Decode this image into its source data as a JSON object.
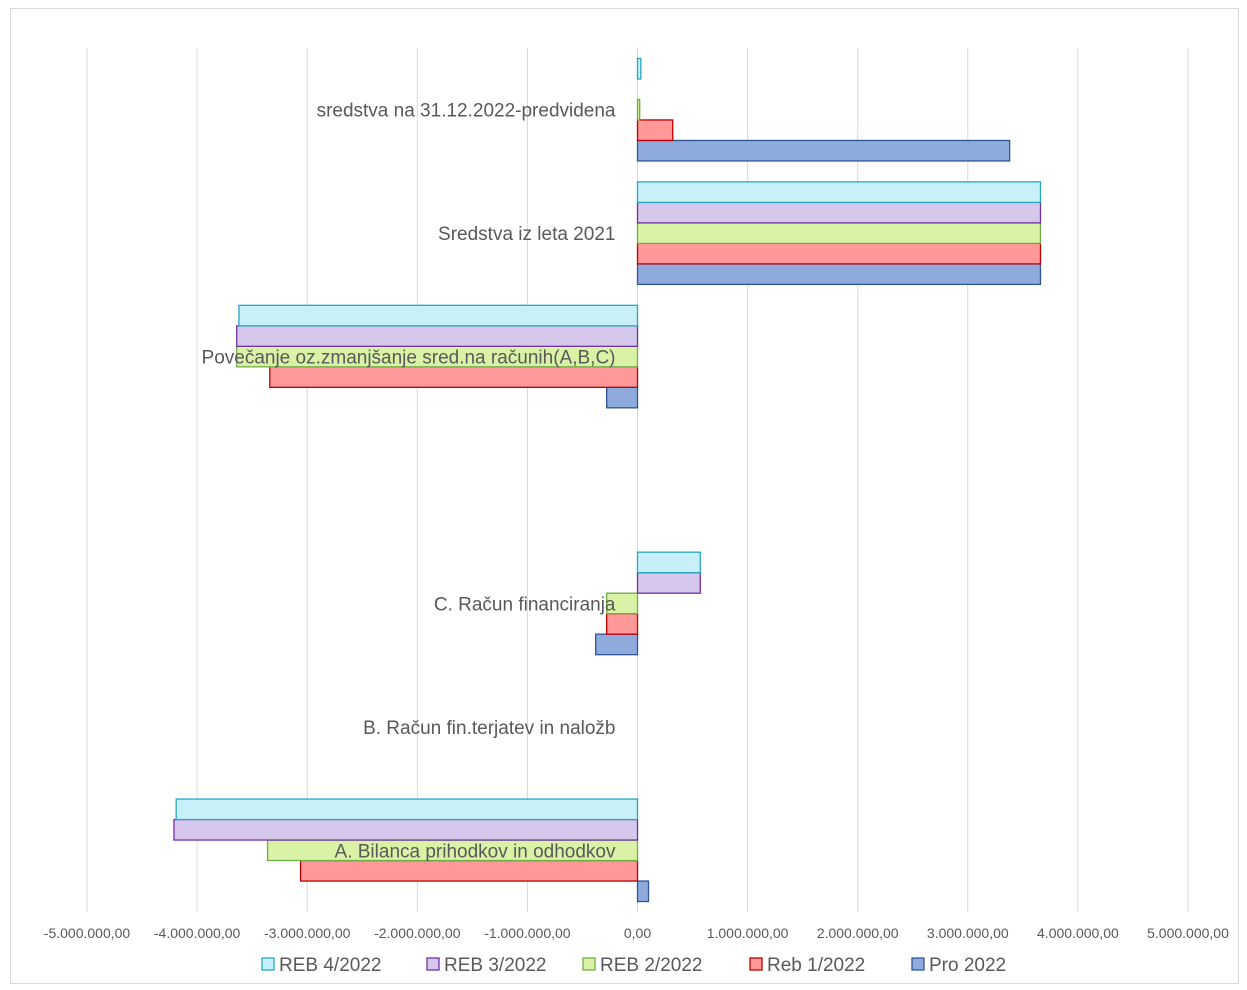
{
  "chart_data": {
    "type": "bar",
    "orientation": "horizontal",
    "title": "",
    "xlabel": "",
    "ylabel": "",
    "xlim": [
      -5000000,
      5000000
    ],
    "x_ticks": [
      -5000000,
      -4000000,
      -3000000,
      -2000000,
      -1000000,
      0,
      1000000,
      2000000,
      3000000,
      4000000,
      5000000
    ],
    "x_tick_labels": [
      "-5.000.000,00",
      "-4.000.000,00",
      "-3.000.000,00",
      "-2.000.000,00",
      "-1.000.000,00",
      "0,00",
      "1.000.000,00",
      "2.000.000,00",
      "3.000.000,00",
      "4.000.000,00",
      "5.000.000,00"
    ],
    "grid": "vertical",
    "legend_position": "bottom",
    "categories": [
      "A. Bilanca prihodkov in odhodkov",
      "B. Račun fin.terjatev in naložb",
      "C. Račun financiranja",
      "",
      "Povečanje oz.zmanjšanje sred.na računih(A,B,C)",
      "Sredstva iz leta 2021",
      "sredstva na 31.12.2022-predvidena"
    ],
    "series": [
      {
        "name": "Pro 2022",
        "color": "#8faadc",
        "stroke": "#2f5597",
        "values": [
          100000,
          0,
          -380000,
          0,
          -280000,
          3660000,
          3380000
        ]
      },
      {
        "name": "Reb 1/2022",
        "color": "#ff9999",
        "stroke": "#c00000",
        "values": [
          -3060000,
          0,
          -280000,
          0,
          -3340000,
          3660000,
          320000
        ]
      },
      {
        "name": "REB 2/2022",
        "color": "#d9f2a6",
        "stroke": "#70ad47",
        "values": [
          -3360000,
          0,
          -280000,
          0,
          -3640000,
          3660000,
          20000
        ]
      },
      {
        "name": "REB 3/2022",
        "color": "#d6c8ec",
        "stroke": "#7030a0",
        "values": [
          -4210000,
          0,
          570000,
          0,
          -3640000,
          3660000,
          0
        ]
      },
      {
        "name": "REB 4/2022",
        "color": "#c8f0f8",
        "stroke": "#2aa6bf",
        "values": [
          -4190000,
          0,
          570000,
          0,
          -3620000,
          3660000,
          30000
        ]
      }
    ]
  }
}
